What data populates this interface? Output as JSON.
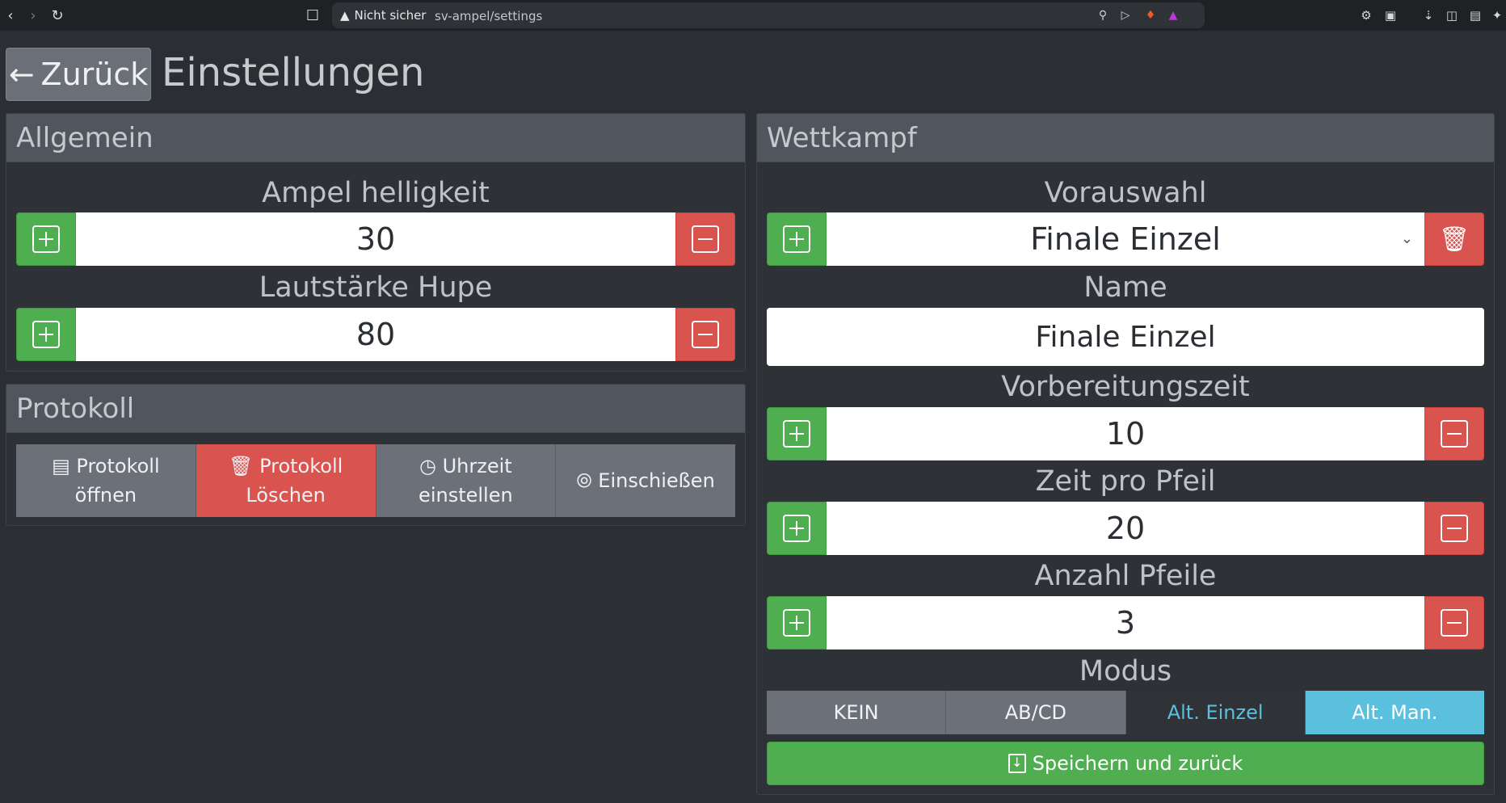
{
  "browser": {
    "security_label": "Nicht sicher",
    "url": "sv-ampel/settings"
  },
  "header": {
    "back_label": "Zurück",
    "title": "Einstellungen"
  },
  "allgemein": {
    "title": "Allgemein",
    "brightness_label": "Ampel helligkeit",
    "brightness_value": "30",
    "volume_label": "Lautstärke Hupe",
    "volume_value": "80"
  },
  "protokoll": {
    "title": "Protokoll",
    "buttons": [
      {
        "line1": "Protokoll",
        "line2": "öffnen"
      },
      {
        "line1": "Protokoll",
        "line2": "Löschen"
      },
      {
        "line1": "Uhrzeit",
        "line2": "einstellen"
      },
      {
        "line1": "Einschießen",
        "line2": ""
      }
    ]
  },
  "wettkampf": {
    "title": "Wettkampf",
    "preset_label": "Vorauswahl",
    "preset_value": "Finale Einzel",
    "name_label": "Name",
    "name_value": "Finale Einzel",
    "prep_label": "Vorbereitungszeit",
    "prep_value": "10",
    "time_label": "Zeit pro Pfeil",
    "time_value": "20",
    "arrows_label": "Anzahl Pfeile",
    "arrows_value": "3",
    "mode_label": "Modus",
    "modes": [
      "KEIN",
      "AB/CD",
      "Alt. Einzel",
      "Alt. Man."
    ],
    "active_mode": "Alt. Man.",
    "save_label": "Speichern und zurück"
  },
  "colors": {
    "success": "#4fae4f",
    "danger": "#d9534f",
    "info": "#5bc0de",
    "panel_header": "#50565d"
  }
}
